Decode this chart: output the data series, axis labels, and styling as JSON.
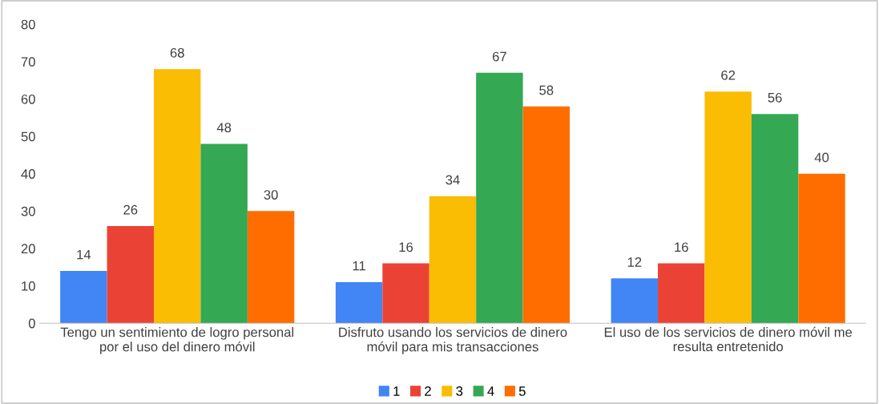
{
  "chart_data": {
    "type": "bar",
    "categories": [
      "Tengo un sentimiento de logro personal\npor el uso del dinero móvil",
      "Disfruto usando los servicios de dinero\nmóvil para mis transacciones",
      "El uso de los servicios de dinero móvil me\nresulta entretenido"
    ],
    "series": [
      {
        "name": "1",
        "color": "#4285f4",
        "values": [
          14,
          11,
          12
        ]
      },
      {
        "name": "2",
        "color": "#ea4335",
        "values": [
          26,
          16,
          16
        ]
      },
      {
        "name": "3",
        "color": "#fbbc04",
        "values": [
          68,
          34,
          62
        ]
      },
      {
        "name": "4",
        "color": "#34a853",
        "values": [
          48,
          67,
          56
        ]
      },
      {
        "name": "5",
        "color": "#ff6d01",
        "values": [
          30,
          58,
          40
        ]
      }
    ],
    "ylim": [
      0,
      80
    ],
    "yticks": [
      0,
      10,
      20,
      30,
      40,
      50,
      60,
      70,
      80
    ],
    "data_labels": true,
    "legend": "bottom",
    "grid": false
  }
}
